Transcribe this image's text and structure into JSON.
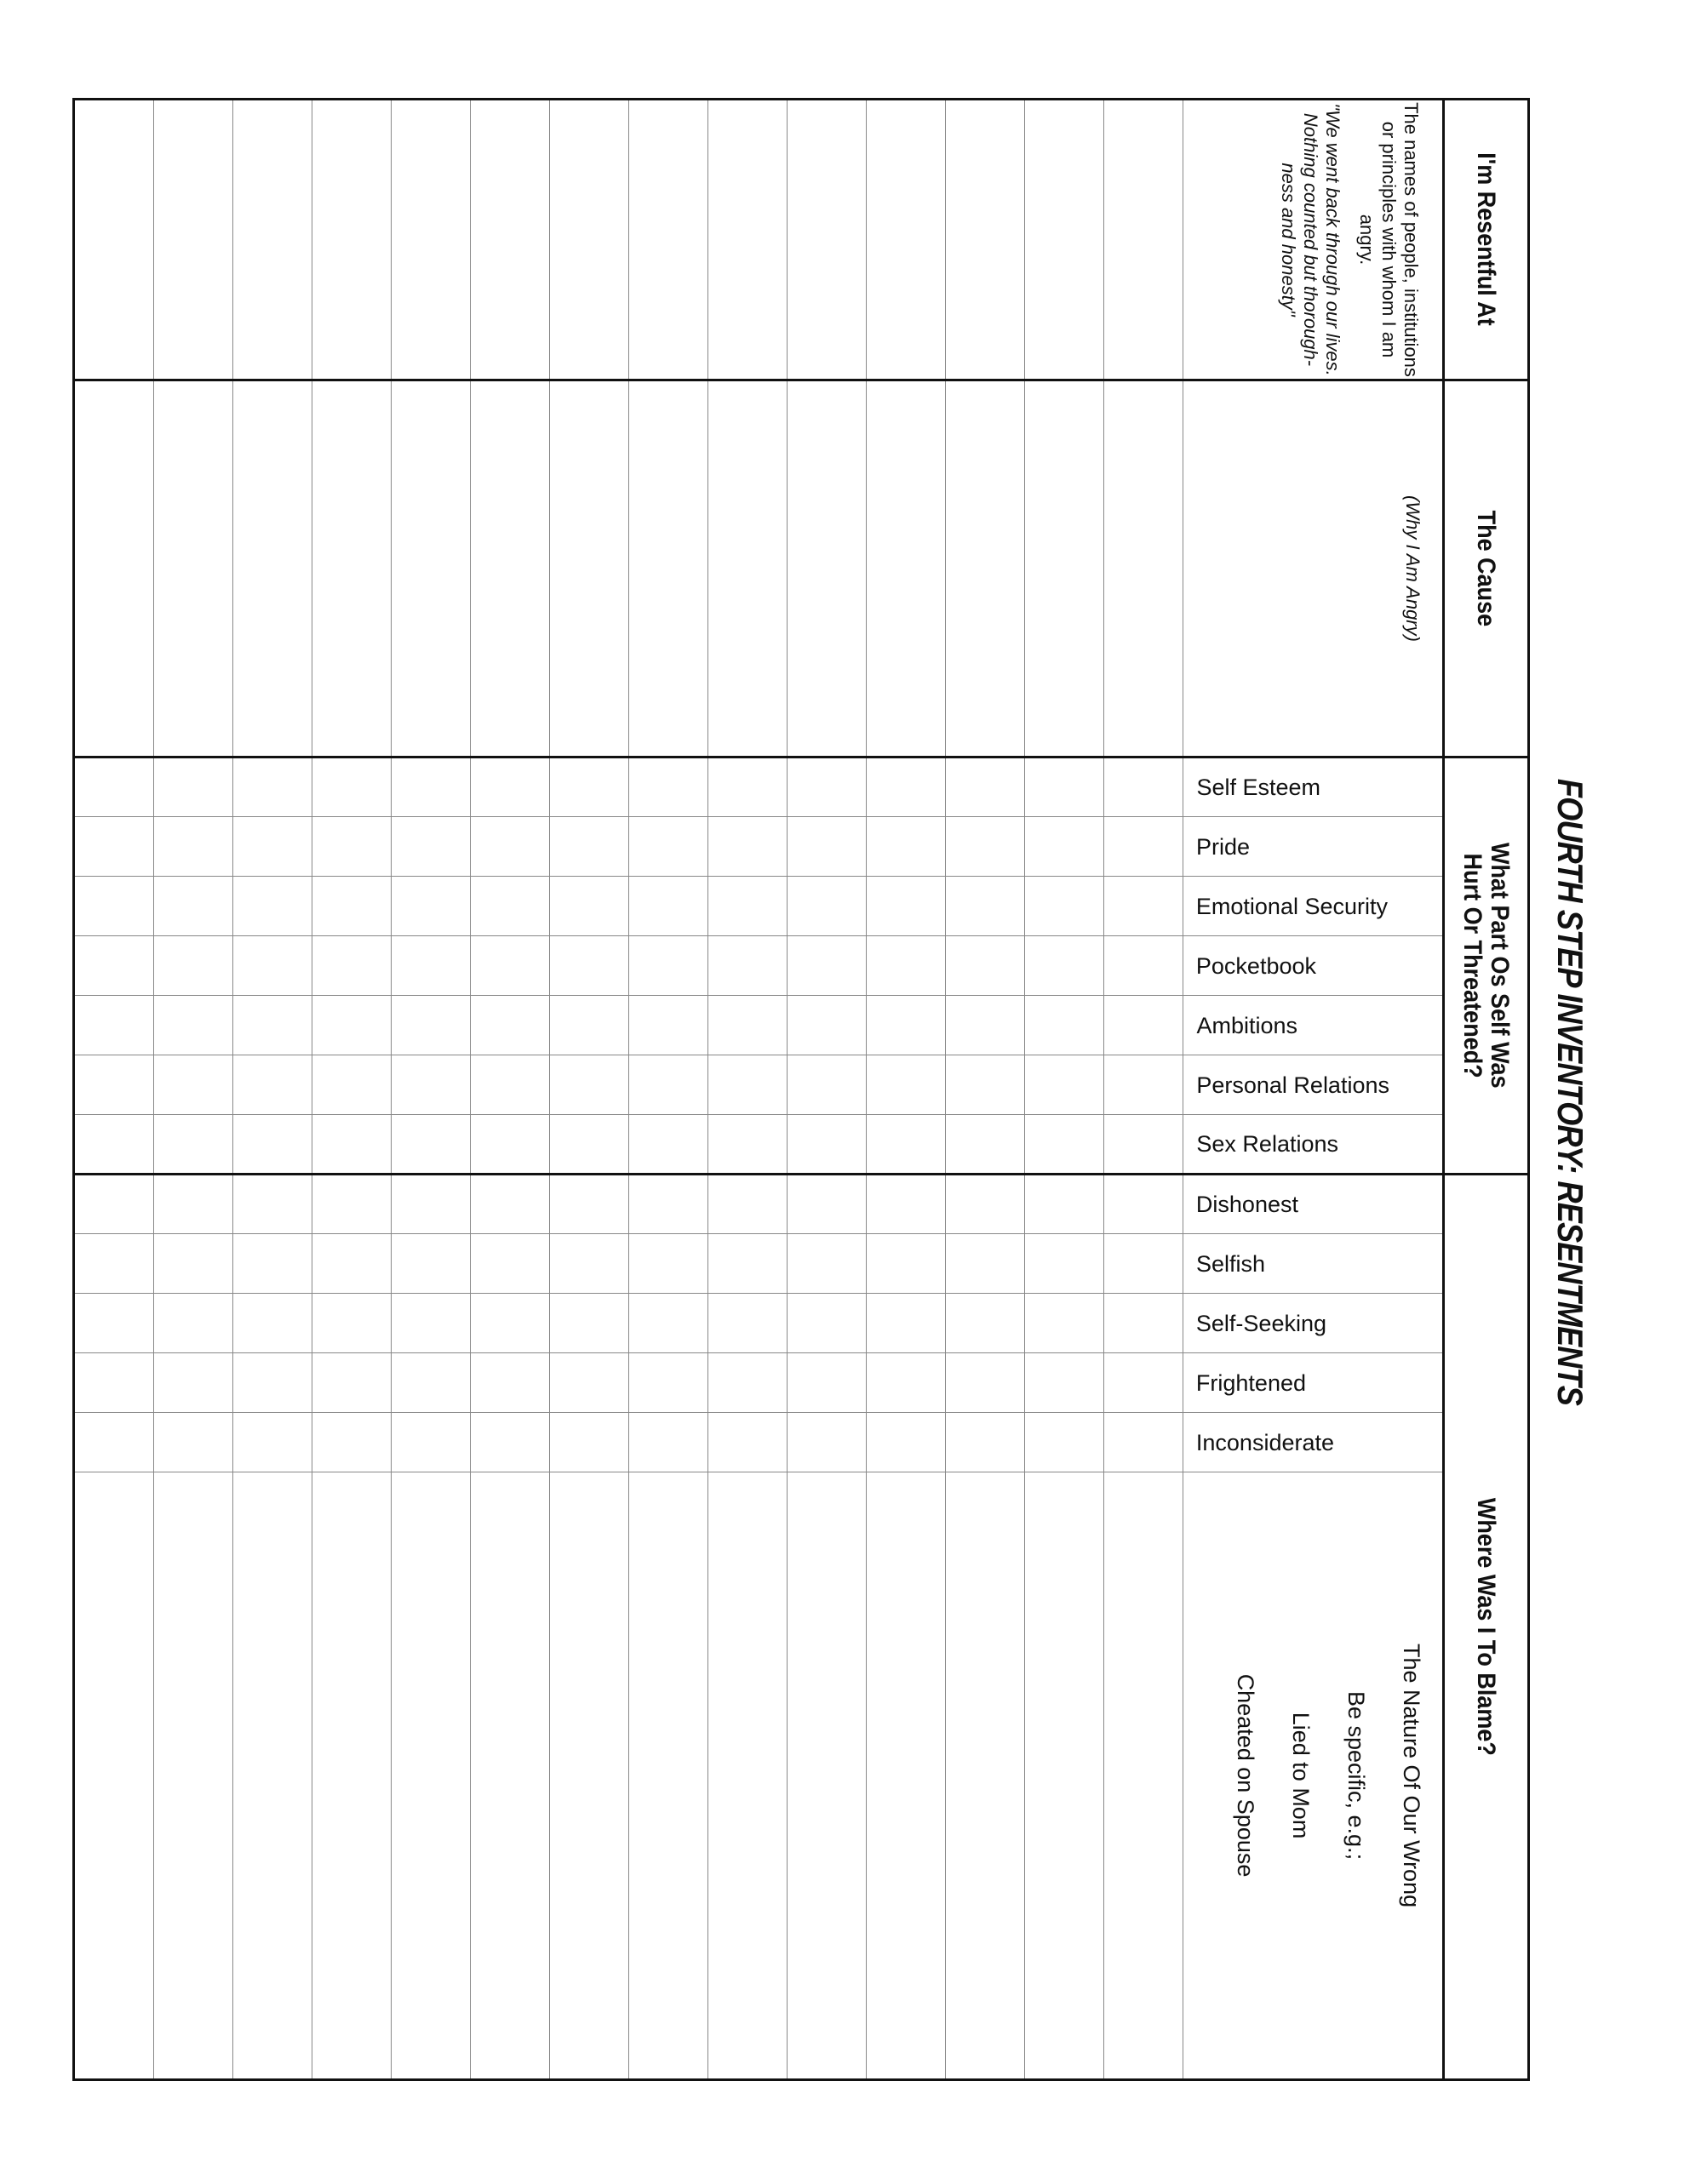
{
  "title": "FOURTH STEP INVENTORY:  RESENTMENTS",
  "columns": {
    "resentful": {
      "header": "I'm Resentful At",
      "description": "The names of people, institutions or principles with whom I am angry.",
      "quote": "\"We went back through our lives.  Nothing counted but thorough-ness and honesty\""
    },
    "cause": {
      "header": "The Cause",
      "note": "(Why I Am Angry)"
    },
    "self": {
      "header_line1": "What Part Os Self Was",
      "header_line2": "Hurt Or Threatened?",
      "items": [
        "Self Esteem",
        "Pride",
        "Emotional Security",
        "Pocketbook",
        "Ambitions",
        "Personal Relations",
        "Sex Relations"
      ]
    },
    "blame": {
      "header": "Where Was I To Blame?",
      "items": [
        "Dishonest",
        "Selfish",
        "Self-Seeking",
        "Frightened",
        "Inconsiderate"
      ],
      "lines": [
        "The Nature Of Our Wrong",
        "Be specific, e.g.;",
        "Lied to Mom",
        "Cheated on Spouse"
      ]
    }
  }
}
